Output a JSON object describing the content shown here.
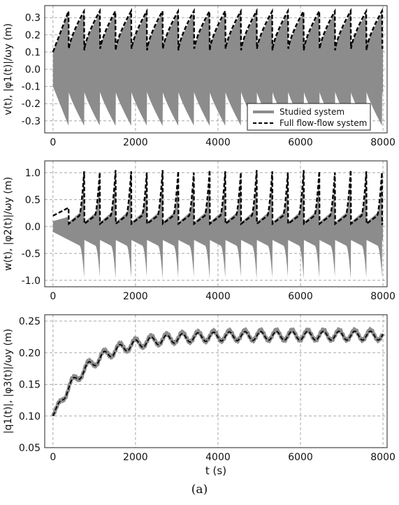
{
  "caption": "(a)",
  "colors": {
    "studied": "#8c8c8c",
    "full": "#000000",
    "grid": "#a8a8a8"
  },
  "chart_data": [
    {
      "type": "line",
      "ylabel": "v(t), |φ1(t)|/ωy (m)",
      "xlabel": "",
      "xlim": [
        -200,
        8100
      ],
      "ylim": [
        -0.37,
        0.37
      ],
      "xticks": [
        "0",
        "2000",
        "4000",
        "6000",
        "8000"
      ],
      "yticks": [
        "-0.3",
        "-0.2",
        "-0.1",
        "0.0",
        "0.1",
        "0.2",
        "0.3"
      ],
      "grid": true,
      "legend": {
        "position": "lower-right",
        "entries": [
          "Studied system",
          "Full flow-flow system"
        ]
      },
      "series": [
        {
          "name": "Studied system",
          "kind": "oscillation-envelope",
          "amplitude_peak": 0.33,
          "amplitude_trough": 0.13,
          "start_amplitude": 0.1,
          "period": 380
        },
        {
          "name": "Full flow-flow system",
          "kind": "envelope",
          "peak": 0.34,
          "trough": 0.11,
          "start": 0.1,
          "period": 380
        }
      ],
      "x_range": [
        0,
        8000
      ]
    },
    {
      "type": "line",
      "ylabel": "w(t), |φ2(t)|/ωy (m)",
      "xlabel": "",
      "xlim": [
        -200,
        8100
      ],
      "ylim": [
        -1.12,
        1.22
      ],
      "xticks": [
        "0",
        "2000",
        "4000",
        "6000",
        "8000"
      ],
      "yticks": [
        "-1.0",
        "-0.5",
        "0.0",
        "0.5",
        "1.0"
      ],
      "grid": true,
      "series": [
        {
          "name": "Studied system",
          "kind": "asymmetric-oscillation",
          "amplitude_up_peak": 1.0,
          "amplitude_down_peak": -1.0,
          "amplitude_up_trough": 0.08,
          "amplitude_down_trough": -0.25,
          "start_amplitude": 0.1,
          "period": 380
        },
        {
          "name": "Full flow-flow system",
          "kind": "envelope",
          "peak": 1.1,
          "trough": 0.05,
          "start": 0.2,
          "period": 380
        }
      ],
      "x_range": [
        0,
        8000
      ]
    },
    {
      "type": "line",
      "ylabel": "|q1(t)|, |φ3(t)|/ωy (m)",
      "xlabel": "t (s)",
      "xlim": [
        -200,
        8100
      ],
      "ylim": [
        0.05,
        0.26
      ],
      "xticks": [
        "0",
        "2000",
        "4000",
        "6000",
        "8000"
      ],
      "yticks": [
        "0.05",
        "0.10",
        "0.15",
        "0.20",
        "0.25"
      ],
      "grid": true,
      "series": [
        {
          "name": "Studied system",
          "kind": "rising-ripple",
          "start": 0.1,
          "plateau": 0.228,
          "ripple": 0.008,
          "period": 380
        },
        {
          "name": "Full flow-flow system",
          "kind": "rising-ripple",
          "start": 0.1,
          "plateau": 0.227,
          "ripple": 0.007,
          "period": 380
        }
      ],
      "x_range": [
        0,
        8000
      ]
    }
  ]
}
